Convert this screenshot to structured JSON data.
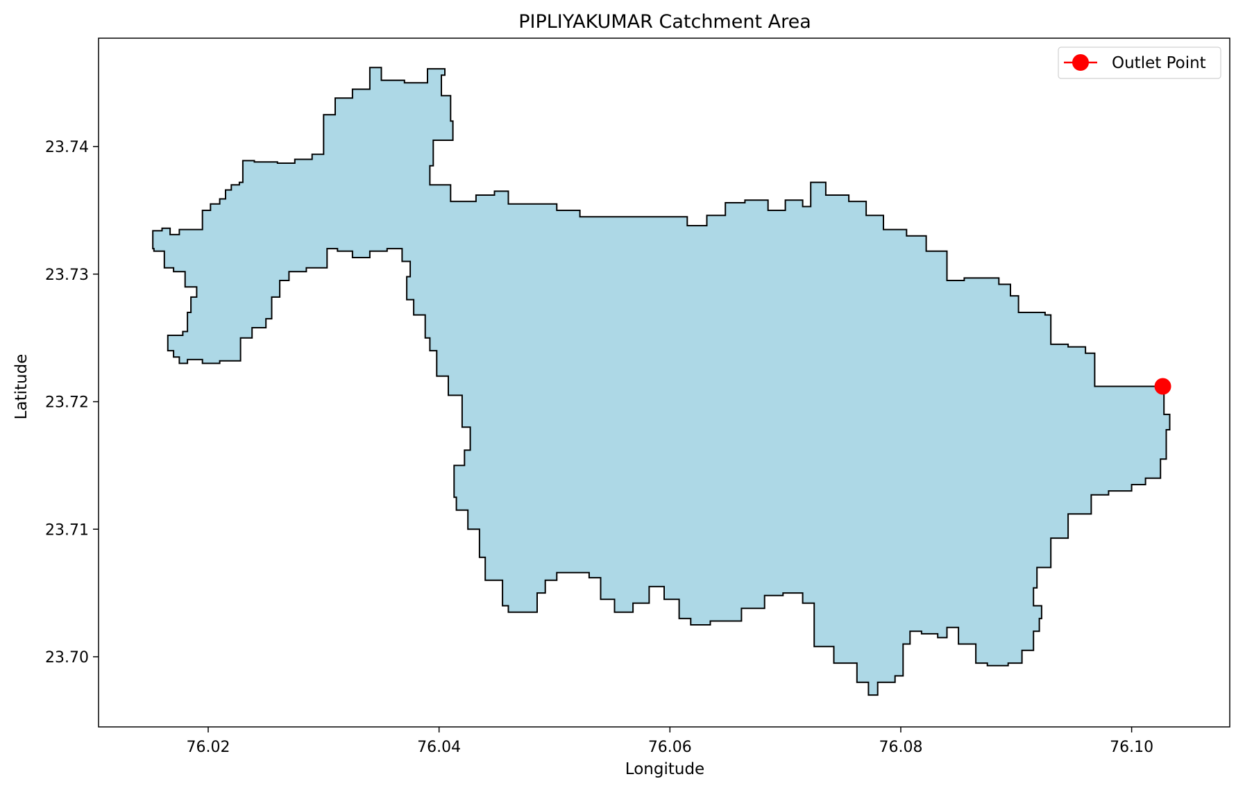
{
  "chart_data": {
    "type": "map",
    "title": "PIPLIYAKUMAR Catchment Area",
    "xlabel": "Longitude",
    "ylabel": "Latitude",
    "xlim": [
      76.0105,
      76.1085
    ],
    "ylim": [
      23.6945,
      23.7485
    ],
    "xticks": [
      76.02,
      76.04,
      76.06,
      76.08,
      76.1
    ],
    "xtick_labels": [
      "76.02",
      "76.04",
      "76.06",
      "76.08",
      "76.10"
    ],
    "yticks": [
      23.7,
      23.71,
      23.72,
      23.73,
      23.74
    ],
    "ytick_labels": [
      "23.70",
      "23.71",
      "23.72",
      "23.73",
      "23.74"
    ],
    "grid": false,
    "legend_position": "top-right",
    "catchment": {
      "fill_color": "#add8e6",
      "edge_color": "#000000",
      "boundary": [
        [
          76.0152,
          23.7334
        ],
        [
          76.016,
          23.7336
        ],
        [
          76.0167,
          23.7331
        ],
        [
          76.0175,
          23.7335
        ],
        [
          76.0182,
          23.7335
        ],
        [
          76.0195,
          23.735
        ],
        [
          76.0202,
          23.7355
        ],
        [
          76.021,
          23.7359
        ],
        [
          76.0215,
          23.7366
        ],
        [
          76.022,
          23.737
        ],
        [
          76.0227,
          23.7372
        ],
        [
          76.023,
          23.7389
        ],
        [
          76.024,
          23.7388
        ],
        [
          76.026,
          23.7387
        ],
        [
          76.0275,
          23.739
        ],
        [
          76.029,
          23.7394
        ],
        [
          76.03,
          23.7425
        ],
        [
          76.031,
          23.7438
        ],
        [
          76.0325,
          23.7445
        ],
        [
          76.034,
          23.7462
        ],
        [
          76.035,
          23.7452
        ],
        [
          76.037,
          23.745
        ],
        [
          76.039,
          23.7461
        ],
        [
          76.0405,
          23.7456
        ],
        [
          76.0402,
          23.744
        ],
        [
          76.041,
          23.742
        ],
        [
          76.0412,
          23.7405
        ],
        [
          76.0395,
          23.7385
        ],
        [
          76.0392,
          23.737
        ],
        [
          76.041,
          23.7357
        ],
        [
          76.0432,
          23.7362
        ],
        [
          76.0448,
          23.7365
        ],
        [
          76.046,
          23.7355
        ],
        [
          76.0482,
          23.7355
        ],
        [
          76.0502,
          23.735
        ],
        [
          76.0522,
          23.7345
        ],
        [
          76.055,
          23.7345
        ],
        [
          76.058,
          23.7345
        ],
        [
          76.0615,
          23.7338
        ],
        [
          76.0632,
          23.7346
        ],
        [
          76.0648,
          23.7356
        ],
        [
          76.0665,
          23.7358
        ],
        [
          76.0685,
          23.735
        ],
        [
          76.07,
          23.7358
        ],
        [
          76.0715,
          23.7353
        ],
        [
          76.0722,
          23.7372
        ],
        [
          76.0735,
          23.7362
        ],
        [
          76.0755,
          23.7357
        ],
        [
          76.077,
          23.7346
        ],
        [
          76.0785,
          23.7335
        ],
        [
          76.0805,
          23.733
        ],
        [
          76.0822,
          23.7318
        ],
        [
          76.084,
          23.7295
        ],
        [
          76.0855,
          23.7297
        ],
        [
          76.0875,
          23.7297
        ],
        [
          76.0885,
          23.7292
        ],
        [
          76.0895,
          23.7283
        ],
        [
          76.0902,
          23.727
        ],
        [
          76.0925,
          23.7268
        ],
        [
          76.093,
          23.7245
        ],
        [
          76.0945,
          23.7243
        ],
        [
          76.096,
          23.7238
        ],
        [
          76.0968,
          23.7212
        ],
        [
          76.1025,
          23.7212
        ],
        [
          76.1028,
          23.719
        ],
        [
          76.1033,
          23.7178
        ],
        [
          76.103,
          23.7155
        ],
        [
          76.1025,
          23.714
        ],
        [
          76.1012,
          23.7135
        ],
        [
          76.1,
          23.713
        ],
        [
          76.098,
          23.7127
        ],
        [
          76.0965,
          23.7112
        ],
        [
          76.0945,
          23.7093
        ],
        [
          76.093,
          23.707
        ],
        [
          76.0918,
          23.7054
        ],
        [
          76.0915,
          23.704
        ],
        [
          76.0922,
          23.703
        ],
        [
          76.092,
          23.702
        ],
        [
          76.0915,
          23.7005
        ],
        [
          76.0905,
          23.6995
        ],
        [
          76.0893,
          23.6993
        ],
        [
          76.0875,
          23.6995
        ],
        [
          76.0865,
          23.701
        ],
        [
          76.085,
          23.7023
        ],
        [
          76.084,
          23.7015
        ],
        [
          76.0832,
          23.7018
        ],
        [
          76.0818,
          23.702
        ],
        [
          76.0808,
          23.701
        ],
        [
          76.0802,
          23.6985
        ],
        [
          76.0795,
          23.698
        ],
        [
          76.078,
          23.697
        ],
        [
          76.0772,
          23.698
        ],
        [
          76.0762,
          23.6995
        ],
        [
          76.0742,
          23.7008
        ],
        [
          76.0725,
          23.7042
        ],
        [
          76.0715,
          23.705
        ],
        [
          76.0698,
          23.7048
        ],
        [
          76.0682,
          23.7038
        ],
        [
          76.0662,
          23.7028
        ],
        [
          76.0635,
          23.7025
        ],
        [
          76.0618,
          23.703
        ],
        [
          76.0608,
          23.7045
        ],
        [
          76.0595,
          23.7055
        ],
        [
          76.0582,
          23.7042
        ],
        [
          76.0568,
          23.7035
        ],
        [
          76.0552,
          23.7045
        ],
        [
          76.054,
          23.7062
        ],
        [
          76.053,
          23.7066
        ],
        [
          76.0502,
          23.706
        ],
        [
          76.0492,
          23.705
        ],
        [
          76.0485,
          23.7035
        ],
        [
          76.047,
          23.7035
        ],
        [
          76.046,
          23.704
        ],
        [
          76.0455,
          23.706
        ],
        [
          76.044,
          23.7078
        ],
        [
          76.0435,
          23.71
        ],
        [
          76.0425,
          23.7115
        ],
        [
          76.0415,
          23.7125
        ],
        [
          76.0413,
          23.715
        ],
        [
          76.0422,
          23.7162
        ],
        [
          76.0427,
          23.718
        ],
        [
          76.042,
          23.7205
        ],
        [
          76.0408,
          23.722
        ],
        [
          76.0398,
          23.724
        ],
        [
          76.0392,
          23.725
        ],
        [
          76.0388,
          23.7268
        ],
        [
          76.0378,
          23.728
        ],
        [
          76.0372,
          23.7298
        ],
        [
          76.0375,
          23.731
        ],
        [
          76.0368,
          23.732
        ],
        [
          76.0355,
          23.7318
        ],
        [
          76.034,
          23.7313
        ],
        [
          76.0325,
          23.7318
        ],
        [
          76.0312,
          23.732
        ],
        [
          76.0303,
          23.7305
        ],
        [
          76.0285,
          23.7302
        ],
        [
          76.027,
          23.7295
        ],
        [
          76.0262,
          23.7282
        ],
        [
          76.0255,
          23.7265
        ],
        [
          76.025,
          23.7258
        ],
        [
          76.0238,
          23.725
        ],
        [
          76.0228,
          23.7232
        ],
        [
          76.021,
          23.723
        ],
        [
          76.0195,
          23.7233
        ],
        [
          76.0182,
          23.723
        ],
        [
          76.0175,
          23.7235
        ],
        [
          76.017,
          23.724
        ],
        [
          76.0165,
          23.725
        ],
        [
          76.0165,
          23.7252
        ],
        [
          76.0178,
          23.7255
        ],
        [
          76.0182,
          23.727
        ],
        [
          76.0185,
          23.7282
        ],
        [
          76.019,
          23.729
        ],
        [
          76.018,
          23.7302
        ],
        [
          76.017,
          23.7305
        ],
        [
          76.0162,
          23.7318
        ],
        [
          76.0153,
          23.732
        ]
      ]
    },
    "outlet": {
      "name": "Outlet Point",
      "x": 76.1027,
      "y": 23.7212,
      "color": "#ff0000"
    }
  }
}
